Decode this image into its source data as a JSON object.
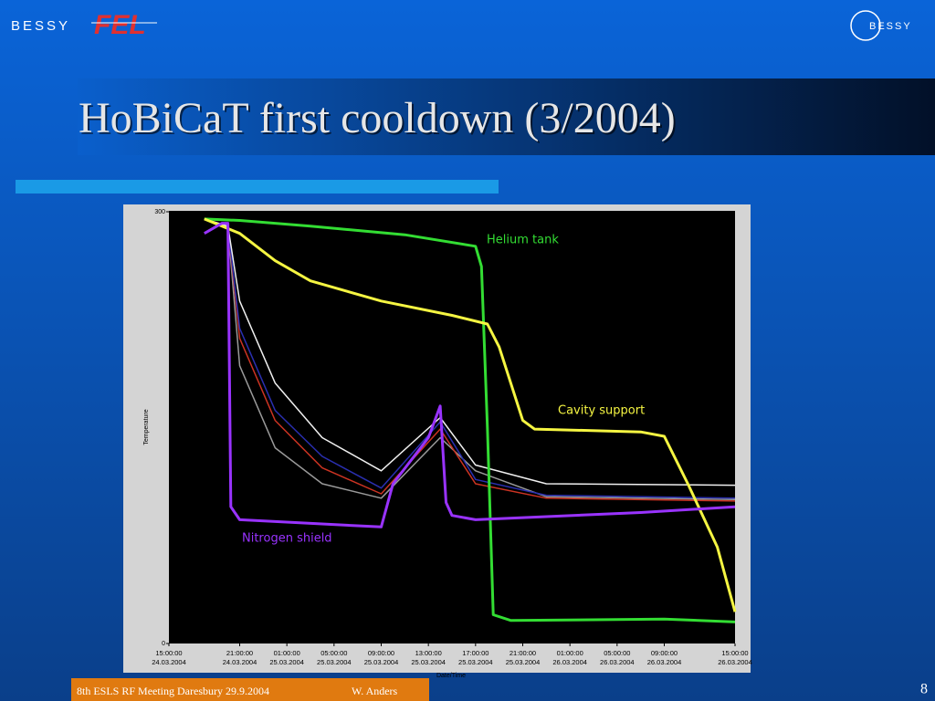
{
  "header": {
    "logo_left_1": "BESSY",
    "logo_left_2": "FEL",
    "logo_right": "BESSY",
    "title": "HoBiCaT first cooldown (3/2004)"
  },
  "footer": {
    "event": "8th ESLS RF Meeting Daresbury 29.9.2004",
    "author": "W. Anders",
    "page": "8"
  },
  "chart_data": {
    "type": "line",
    "ylabel": "Temperature",
    "xlabel": "Date/Time",
    "ylim": [
      0,
      300
    ],
    "yticks": [
      0,
      300
    ],
    "xlim": [
      "2004-03-24T15:00",
      "2004-03-26T15:00"
    ],
    "xticks": [
      {
        "value": "2004-03-24T15:00",
        "label": "15:00:00 24.03.2004"
      },
      {
        "value": "2004-03-24T21:00",
        "label": "21:00:00 24.03.2004"
      },
      {
        "value": "2004-03-25T01:00",
        "label": "01:00:00 25.03.2004"
      },
      {
        "value": "2004-03-25T05:00",
        "label": "05:00:00 25.03.2004"
      },
      {
        "value": "2004-03-25T09:00",
        "label": "09:00:00 25.03.2004"
      },
      {
        "value": "2004-03-25T13:00",
        "label": "13:00:00 25.03.2004"
      },
      {
        "value": "2004-03-25T17:00",
        "label": "17:00:00 25.03.2004"
      },
      {
        "value": "2004-03-25T21:00",
        "label": "21:00:00 25.03.2004"
      },
      {
        "value": "2004-03-26T01:00",
        "label": "01:00:00 26.03.2004"
      },
      {
        "value": "2004-03-26T05:00",
        "label": "05:00:00 26.03.2004"
      },
      {
        "value": "2004-03-26T09:00",
        "label": "09:00:00 26.03.2004"
      },
      {
        "value": "2004-03-26T15:00",
        "label": "15:00:00 26.03.2004"
      }
    ],
    "series": [
      {
        "color": "#9a9a9a",
        "x": [
          "2004-03-24T18:00",
          "2004-03-24T20:00",
          "2004-03-24T21:00",
          "2004-03-25T00:00",
          "2004-03-25T04:00",
          "2004-03-25T09:00",
          "2004-03-25T14:00",
          "2004-03-25T17:00",
          "2004-03-25T23:00",
          "2004-03-26T15:00"
        ],
        "values": [
          295,
          290,
          193,
          136,
          111,
          101,
          143,
          120,
          102,
          100
        ]
      },
      {
        "color": "#cc3322",
        "x": [
          "2004-03-24T18:00",
          "2004-03-24T20:00",
          "2004-03-24T21:00",
          "2004-03-25T00:00",
          "2004-03-25T04:00",
          "2004-03-25T09:00",
          "2004-03-25T14:00",
          "2004-03-25T17:00",
          "2004-03-25T23:00",
          "2004-03-26T15:00"
        ],
        "values": [
          295,
          290,
          212,
          155,
          122,
          104,
          149,
          111,
          101,
          99
        ]
      },
      {
        "color": "#2a2fb0",
        "x": [
          "2004-03-24T18:00",
          "2004-03-24T20:00",
          "2004-03-24T21:00",
          "2004-03-25T00:00",
          "2004-03-25T04:00",
          "2004-03-25T09:00",
          "2004-03-25T14:00",
          "2004-03-25T17:00",
          "2004-03-25T23:00",
          "2004-03-26T15:00"
        ],
        "values": [
          295,
          290,
          219,
          162,
          130,
          108,
          154,
          114,
          103,
          101
        ]
      },
      {
        "color": "#f0f0f0",
        "x": [
          "2004-03-24T18:00",
          "2004-03-24T20:00",
          "2004-03-24T21:00",
          "2004-03-25T00:00",
          "2004-03-25T04:00",
          "2004-03-25T09:00",
          "2004-03-25T14:00",
          "2004-03-25T17:00",
          "2004-03-25T23:00",
          "2004-03-26T15:00"
        ],
        "values": [
          295,
          290,
          238,
          181,
          143,
          120,
          157,
          124,
          111,
          110
        ]
      },
      {
        "name": "Helium tank",
        "color": "#33dd33",
        "x": [
          "2004-03-24T18:00",
          "2004-03-24T21:00",
          "2004-03-25T03:00",
          "2004-03-25T11:00",
          "2004-03-25T17:00",
          "2004-03-25T17:30",
          "2004-03-25T18:00",
          "2004-03-25T18:30",
          "2004-03-25T20:00",
          "2004-03-26T09:00",
          "2004-03-26T15:00"
        ],
        "values": [
          295,
          294,
          290,
          284,
          276,
          262,
          150,
          20,
          16,
          17,
          15
        ]
      },
      {
        "name": "Cavity support",
        "color": "#f5f542",
        "x": [
          "2004-03-24T18:00",
          "2004-03-24T21:00",
          "2004-03-25T00:00",
          "2004-03-25T03:00",
          "2004-03-25T09:00",
          "2004-03-25T15:00",
          "2004-03-25T18:00",
          "2004-03-25T19:00",
          "2004-03-25T21:00",
          "2004-03-25T22:00",
          "2004-03-26T07:00",
          "2004-03-26T09:00",
          "2004-03-26T11:00",
          "2004-03-26T13:30",
          "2004-03-26T15:00"
        ],
        "values": [
          295,
          285,
          266,
          252,
          238,
          228,
          222,
          206,
          155,
          149,
          147,
          144,
          111,
          67,
          22
        ]
      },
      {
        "name": "Nitrogen shield",
        "color": "#9933ff",
        "x": [
          "2004-03-24T18:00",
          "2004-03-24T19:30",
          "2004-03-24T20:00",
          "2004-03-24T20:15",
          "2004-03-24T21:00",
          "2004-03-25T09:00",
          "2004-03-25T10:00",
          "2004-03-25T13:00",
          "2004-03-25T14:00",
          "2004-03-25T14:30",
          "2004-03-25T15:00",
          "2004-03-25T17:00",
          "2004-03-26T07:00",
          "2004-03-26T15:00"
        ],
        "values": [
          285,
          292,
          292,
          95,
          86,
          81,
          111,
          143,
          165,
          98,
          89,
          86,
          91,
          95
        ]
      }
    ]
  }
}
